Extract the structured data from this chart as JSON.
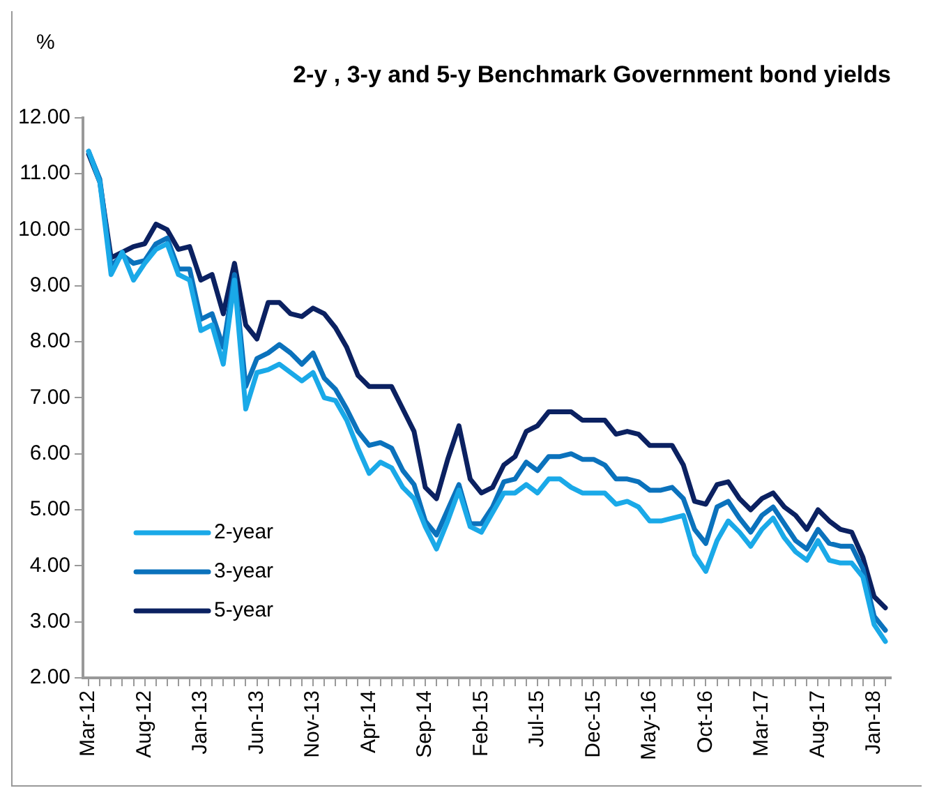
{
  "chart_data": {
    "type": "line",
    "title": "2-y , 3-y and 5-y Benchmark Government bond yields",
    "ylabel": "%",
    "categories": [
      "Mar-12",
      null,
      null,
      null,
      null,
      "Aug-12",
      null,
      null,
      null,
      null,
      "Jan-13",
      null,
      null,
      null,
      null,
      "Jun-13",
      null,
      null,
      null,
      null,
      "Nov-13",
      null,
      null,
      null,
      null,
      "Apr-14",
      null,
      null,
      null,
      null,
      "Sep-14",
      null,
      null,
      null,
      null,
      "Feb-15",
      null,
      null,
      null,
      null,
      "Jul-15",
      null,
      null,
      null,
      null,
      "Dec-15",
      null,
      null,
      null,
      null,
      "May-16",
      null,
      null,
      null,
      null,
      "Oct-16",
      null,
      null,
      null,
      null,
      "Mar-17",
      null,
      null,
      null,
      null,
      "Aug-17",
      null,
      null,
      null,
      null,
      "Jan-18",
      null
    ],
    "series": [
      {
        "name": "2-year",
        "color": "#1aa9e8",
        "values": [
          11.4,
          10.85,
          9.2,
          9.6,
          9.1,
          9.4,
          9.65,
          9.75,
          9.2,
          9.1,
          8.2,
          8.3,
          7.6,
          9.1,
          6.8,
          7.45,
          7.5,
          7.6,
          7.45,
          7.3,
          7.45,
          7.0,
          6.95,
          6.6,
          6.1,
          5.65,
          5.85,
          5.75,
          5.4,
          5.2,
          4.7,
          4.3,
          4.8,
          5.35,
          4.7,
          4.6,
          4.95,
          5.3,
          5.3,
          5.45,
          5.3,
          5.55,
          5.55,
          5.4,
          5.3,
          5.3,
          5.3,
          5.1,
          5.15,
          5.05,
          4.8,
          4.8,
          4.85,
          4.9,
          4.2,
          3.9,
          4.45,
          4.8,
          4.6,
          4.35,
          4.65,
          4.85,
          4.5,
          4.25,
          4.1,
          4.45,
          4.1,
          4.05,
          4.05,
          3.8,
          2.95,
          2.65
        ]
      },
      {
        "name": "3-year",
        "color": "#0b72bc",
        "values": [
          11.4,
          10.9,
          9.35,
          9.55,
          9.4,
          9.45,
          9.75,
          9.85,
          9.3,
          9.3,
          8.4,
          8.5,
          7.9,
          9.2,
          7.2,
          7.7,
          7.8,
          7.95,
          7.8,
          7.6,
          7.8,
          7.35,
          7.15,
          6.8,
          6.4,
          6.15,
          6.2,
          6.1,
          5.7,
          5.45,
          4.8,
          4.55,
          5.0,
          5.45,
          4.75,
          4.75,
          5.05,
          5.5,
          5.55,
          5.85,
          5.7,
          5.95,
          5.95,
          6.0,
          5.9,
          5.9,
          5.8,
          5.55,
          5.55,
          5.5,
          5.35,
          5.35,
          5.4,
          5.2,
          4.65,
          4.4,
          5.05,
          5.15,
          4.85,
          4.6,
          4.9,
          5.05,
          4.75,
          4.45,
          4.3,
          4.65,
          4.4,
          4.35,
          4.35,
          3.95,
          3.1,
          2.85
        ]
      },
      {
        "name": "5-year",
        "color": "#0b2161",
        "values": [
          11.35,
          10.85,
          9.5,
          9.6,
          9.7,
          9.75,
          10.1,
          10.0,
          9.65,
          9.7,
          9.1,
          9.2,
          8.5,
          9.4,
          8.3,
          8.05,
          8.7,
          8.7,
          8.5,
          8.45,
          8.6,
          8.5,
          8.25,
          7.9,
          7.4,
          7.2,
          7.2,
          7.2,
          6.8,
          6.4,
          5.4,
          5.2,
          5.9,
          6.5,
          5.55,
          5.3,
          5.4,
          5.8,
          5.95,
          6.4,
          6.5,
          6.75,
          6.75,
          6.75,
          6.6,
          6.6,
          6.6,
          6.35,
          6.4,
          6.35,
          6.15,
          6.15,
          6.15,
          5.8,
          5.15,
          5.1,
          5.45,
          5.5,
          5.2,
          5.0,
          5.2,
          5.3,
          5.05,
          4.9,
          4.65,
          5.0,
          4.8,
          4.65,
          4.6,
          4.15,
          3.45,
          3.25
        ]
      }
    ],
    "ylim": [
      2,
      12
    ],
    "yticks": [
      {
        "value": 2,
        "label": "2.00"
      },
      {
        "value": 3,
        "label": "3.00"
      },
      {
        "value": 4,
        "label": "4.00"
      },
      {
        "value": 5,
        "label": "5.00"
      },
      {
        "value": 6,
        "label": "6.00"
      },
      {
        "value": 7,
        "label": "7.00"
      },
      {
        "value": 8,
        "label": "8.00"
      },
      {
        "value": 9,
        "label": "9.00"
      },
      {
        "value": 10,
        "label": "10.00"
      },
      {
        "value": 11,
        "label": "11.00"
      },
      {
        "value": 12,
        "label": "12.00"
      }
    ],
    "grid": false,
    "legend": "bottom left",
    "marker": "none",
    "line_style": "solid"
  }
}
